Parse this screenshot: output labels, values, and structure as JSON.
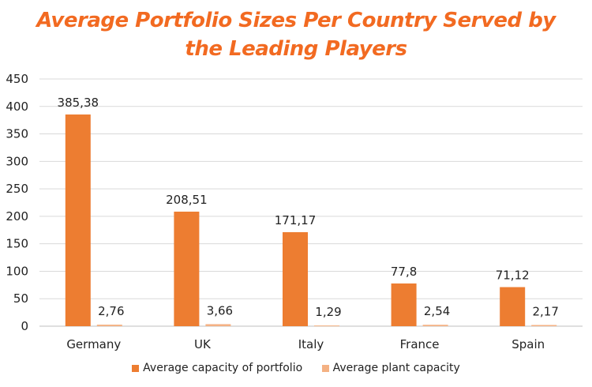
{
  "colors": {
    "title": "#f26a21",
    "series1": "#ed7d31",
    "series2": "#f4b183",
    "grid": "#d9d9d9",
    "axis": "#bfbfbf"
  },
  "chart_data": {
    "type": "bar",
    "title_lines": [
      "Average Portfolio Sizes Per Country Served by",
      "the Leading Players"
    ],
    "categories": [
      "Germany",
      "UK",
      "Italy",
      "France",
      "Spain"
    ],
    "series": [
      {
        "name": "Average capacity of portfolio",
        "values": [
          385.38,
          208.51,
          171.17,
          77.8,
          71.12
        ],
        "labels": [
          "385,38",
          "208,51",
          "171,17",
          "77,8",
          "71,12"
        ]
      },
      {
        "name": "Average plant capacity",
        "values": [
          2.76,
          3.66,
          1.29,
          2.54,
          2.17
        ],
        "labels": [
          "2,76",
          "3,66",
          "1,29",
          "2,54",
          "2,17"
        ]
      }
    ],
    "ylim": [
      0,
      450
    ],
    "yticks": [
      0,
      50,
      100,
      150,
      200,
      250,
      300,
      350,
      400,
      450
    ],
    "grid": true,
    "legend": "bottom"
  }
}
